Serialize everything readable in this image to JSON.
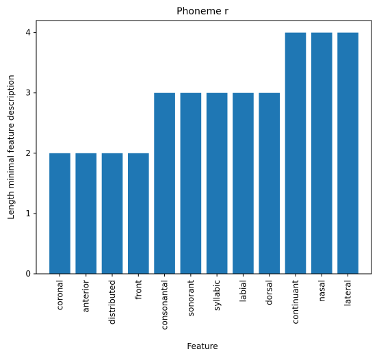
{
  "chart_data": {
    "type": "bar",
    "title": "Phoneme r",
    "xlabel": "Feature",
    "ylabel": "Length minimal feature description",
    "categories": [
      "coronal",
      "anterior",
      "distributed",
      "front",
      "consonantal",
      "sonorant",
      "syllabic",
      "labial",
      "dorsal",
      "continuant",
      "nasal",
      "lateral"
    ],
    "values": [
      2,
      2,
      2,
      2,
      3,
      3,
      3,
      3,
      3,
      4,
      4,
      4
    ],
    "ylim": [
      0,
      4.2
    ],
    "yticks": [
      "0",
      "1",
      "2",
      "3",
      "4"
    ],
    "bar_color": "#1f77b4",
    "grid": false,
    "legend": "none"
  }
}
